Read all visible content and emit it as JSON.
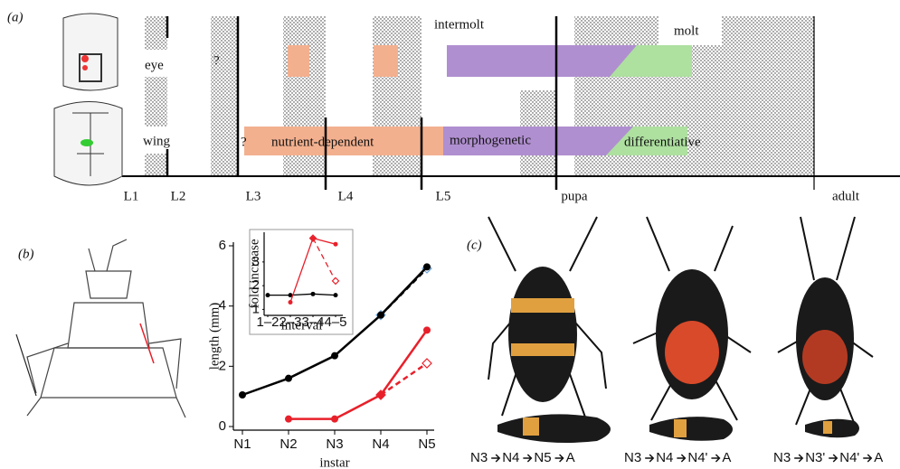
{
  "panel_a": {
    "label": "(a)",
    "stages": [
      "L1",
      "L2",
      "L3",
      "L4",
      "L5",
      "pupa",
      "adult"
    ],
    "row_labels": [
      "eye",
      "wing"
    ],
    "unknown_marks": [
      "?",
      "?"
    ],
    "phases": [
      "intermolt",
      "molt"
    ],
    "periods": [
      "nutrient-dependent",
      "morphogenetic",
      "differentiative"
    ]
  },
  "panel_b": {
    "label": "(b)"
  },
  "chart_data": [
    {
      "type": "line",
      "categories": [
        "N1",
        "N2",
        "N3",
        "N4",
        "N5"
      ],
      "xlabel": "instar",
      "ylabel": "length (mm)",
      "ylim": [
        0,
        6
      ],
      "yticks": [
        0,
        2,
        4,
        6
      ],
      "series": [
        {
          "color": "#000000",
          "values": [
            null,
            null,
            null,
            3.7,
            5.25
          ],
          "dashed": true,
          "marker": "diamond",
          "marker_color": "#6fa8dc"
        },
        {
          "color": "#e8202a",
          "values": [
            null,
            null,
            null,
            1.05,
            2.1
          ],
          "dashed": true,
          "marker": "diamond",
          "marker_color": "#e8202a"
        },
        {
          "color": "#000000",
          "values": [
            1.05,
            1.6,
            2.35,
            3.7,
            5.3
          ],
          "marker": "circle"
        },
        {
          "color": "#e8202a",
          "values": [
            null,
            0.25,
            0.25,
            1.05,
            3.2
          ],
          "marker": "circle"
        }
      ]
    },
    {
      "type": "line",
      "categories": [
        "1–2",
        "2–3",
        "3–4",
        "4–5"
      ],
      "xlabel": "interval",
      "ylabel": "fold increase",
      "ylim": [
        0.9,
        4.1
      ],
      "yticks": [
        1,
        2,
        3
      ],
      "series": [
        {
          "color": "#e8202a",
          "values": [
            null,
            null,
            4.0,
            2.2
          ],
          "dashed": true,
          "marker": "diamond",
          "marker_color": "#e8202a"
        },
        {
          "color": "#000000",
          "values": [
            1.6,
            1.6,
            1.65,
            1.6
          ],
          "marker": "circle"
        },
        {
          "color": "#e8202a",
          "values": [
            null,
            1.3,
            4.0,
            3.75
          ],
          "marker": "circle"
        }
      ]
    }
  ],
  "panel_c": {
    "label": "(c)",
    "captions": [
      [
        "N3",
        "N4",
        "N5",
        "A"
      ],
      [
        "N3",
        "N4",
        "N4'",
        "A"
      ],
      [
        "N3",
        "N3'",
        "N4'",
        "A"
      ]
    ]
  }
}
